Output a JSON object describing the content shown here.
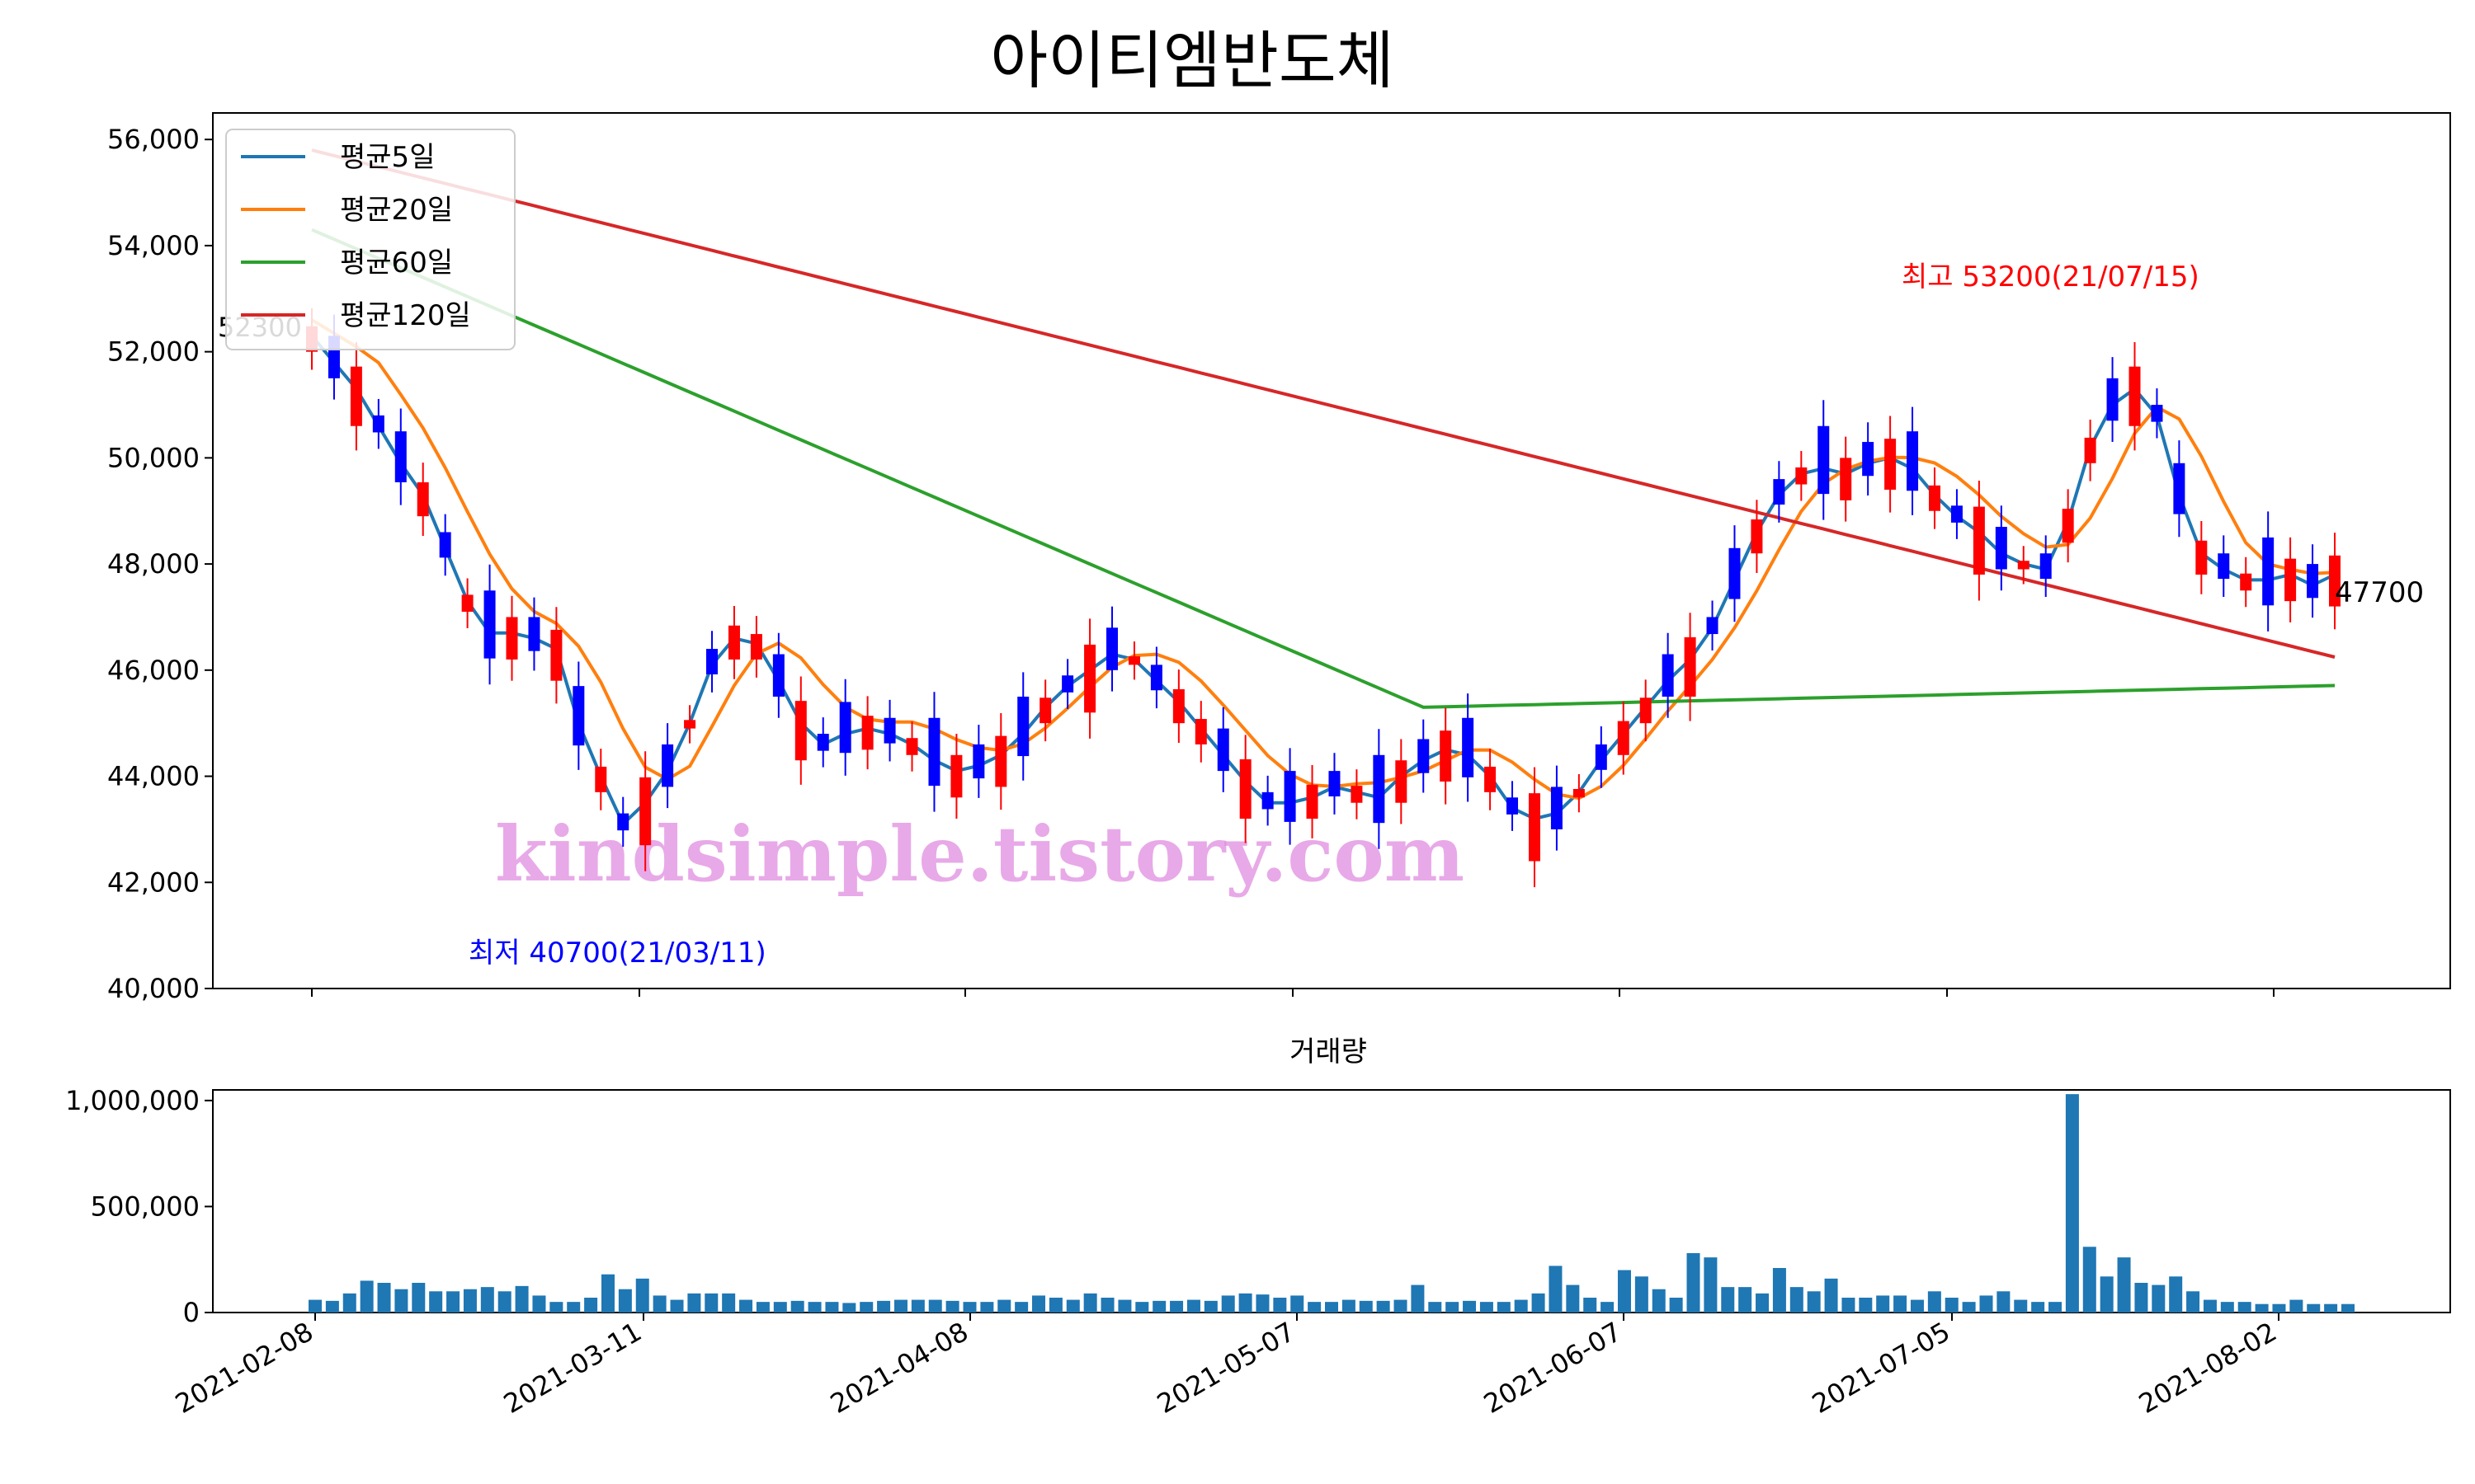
{
  "chart_data": [
    {
      "type": "candlestick",
      "title": "아이티엠반도체",
      "ylim": [
        40000,
        56500
      ],
      "yticks": [
        40000,
        42000,
        44000,
        46000,
        48000,
        50000,
        52000,
        54000,
        56000
      ],
      "ytick_labels": [
        "40,000",
        "42,000",
        "44,000",
        "46,000",
        "48,000",
        "50,000",
        "52,000",
        "54,000",
        "56,000"
      ],
      "xticks": [
        "2021-02-08",
        "2021-03-11",
        "2021-04-08",
        "2021-05-07",
        "2021-06-07",
        "2021-07-05",
        "2021-08-02"
      ],
      "legend": {
        "placement": "top-left",
        "items": [
          {
            "label": "평균5일",
            "color": "#1f77b4"
          },
          {
            "label": "평균20일",
            "color": "#ff7f0e"
          },
          {
            "label": "평균60일",
            "color": "#2ca02c"
          },
          {
            "label": "평균120일",
            "color": "#d62728"
          }
        ]
      },
      "annotations": {
        "high": "최고 53200(21/07/15)",
        "low": "최저 40700(21/03/11)",
        "first_close": "52300",
        "last_close": "47700"
      },
      "watermark": "kindsimple.tistory.com",
      "up_color": "#ff0000",
      "down_color": "#0000ff",
      "series": [
        {
          "name": "평균5일",
          "values": [
            52300,
            51800,
            51300,
            50600,
            49900,
            49300,
            48300,
            47300,
            46700,
            46700,
            46600,
            46400,
            45000,
            44000,
            43100,
            43500,
            44100,
            45000,
            46100,
            46600,
            46500,
            45800,
            45000,
            44600,
            44800,
            44900,
            44800,
            44600,
            44300,
            44100,
            44200,
            44400,
            44800,
            45300,
            45700,
            46000,
            46300,
            46200,
            45800,
            45400,
            44900,
            44400,
            43900,
            43500,
            43500,
            43600,
            43800,
            43700,
            43600,
            44000,
            44300,
            44500,
            44400,
            44000,
            43400,
            43200,
            43300,
            43700,
            44300,
            44800,
            45300,
            45800,
            46200,
            46800,
            47700,
            48600,
            49300,
            49700,
            49800,
            49700,
            49900,
            50000,
            49800,
            49300,
            48900,
            48600,
            48200,
            48000,
            47900,
            48800,
            50200,
            51000,
            51300,
            50800,
            49300,
            48200,
            47900,
            47700,
            47700,
            47800,
            47600,
            47800
          ]
        },
        {
          "name": "평균20일",
          "values": null
        },
        {
          "name": "평균60일",
          "values": null
        },
        {
          "name": "평균120일",
          "values": null
        }
      ]
    },
    {
      "type": "bar",
      "title": "거래량",
      "ylim": [
        0,
        1050000
      ],
      "yticks": [
        0,
        500000,
        1000000
      ],
      "ytick_labels": [
        "0",
        "500,000",
        "1,000,000"
      ],
      "xticks": [
        "2021-02-08",
        "2021-03-11",
        "2021-04-08",
        "2021-05-07",
        "2021-06-07",
        "2021-07-05",
        "2021-08-02"
      ],
      "color": "#1f77b4",
      "values": [
        60000,
        55000,
        90000,
        150000,
        140000,
        110000,
        140000,
        100000,
        100000,
        110000,
        120000,
        100000,
        125000,
        80000,
        50000,
        50000,
        70000,
        180000,
        110000,
        160000,
        80000,
        60000,
        90000,
        90000,
        90000,
        60000,
        50000,
        50000,
        55000,
        50000,
        50000,
        45000,
        50000,
        55000,
        60000,
        60000,
        60000,
        55000,
        50000,
        50000,
        60000,
        50000,
        80000,
        70000,
        60000,
        90000,
        70000,
        60000,
        50000,
        55000,
        55000,
        60000,
        55000,
        80000,
        90000,
        85000,
        70000,
        80000,
        50000,
        50000,
        60000,
        55000,
        55000,
        60000,
        130000,
        50000,
        50000,
        55000,
        50000,
        50000,
        60000,
        90000,
        220000,
        130000,
        70000,
        50000,
        200000,
        170000,
        110000,
        70000,
        280000,
        260000,
        120000,
        120000,
        90000,
        210000,
        120000,
        100000,
        160000,
        70000,
        70000,
        80000,
        80000,
        60000,
        100000,
        70000,
        50000,
        80000,
        100000,
        60000,
        50000,
        50000,
        1030000,
        310000,
        170000,
        260000,
        140000,
        130000,
        170000,
        100000,
        60000,
        50000,
        50000,
        40000,
        40000,
        60000,
        40000,
        40000,
        40000
      ]
    }
  ]
}
